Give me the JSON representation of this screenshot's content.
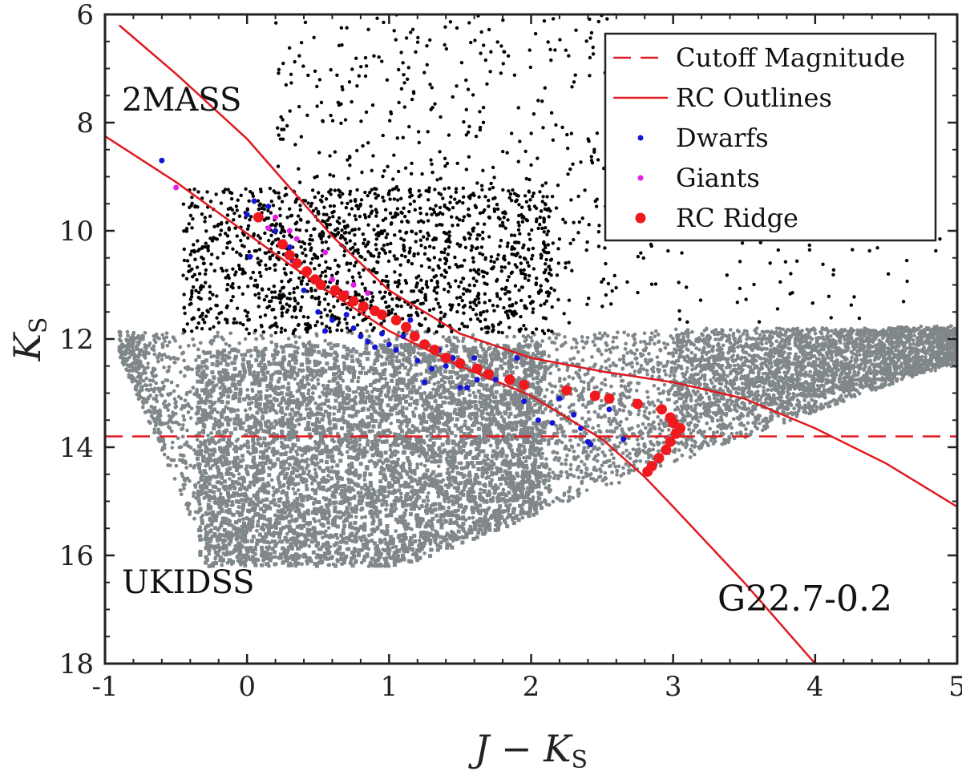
{
  "chart_data": {
    "type": "scatter",
    "title": "",
    "xlabel": "J − K",
    "xlabel_sub": "S",
    "ylabel": "K",
    "ylabel_sub": "S",
    "xlim": [
      -1,
      5
    ],
    "ylim": [
      18,
      6
    ],
    "y_inverted": true,
    "x_ticks": [
      -1,
      0,
      1,
      2,
      3,
      4,
      5
    ],
    "y_ticks": [
      6,
      8,
      10,
      12,
      14,
      16,
      18
    ],
    "x_tick_labels": [
      "-1",
      "0",
      "1",
      "2",
      "3",
      "4",
      "5"
    ],
    "y_tick_labels": [
      "6",
      "8",
      "10",
      "12",
      "14",
      "16",
      "18"
    ],
    "annotations": {
      "top_left": "2MASS",
      "bottom_left": "UKIDSS",
      "bottom_right": "G22.7-0.2"
    },
    "cutoff_magnitude": 13.8,
    "rc_upper_outline": [
      [
        -0.9,
        6.2
      ],
      [
        -0.5,
        7.1
      ],
      [
        0.0,
        8.3
      ],
      [
        0.3,
        9.2
      ],
      [
        0.6,
        10.1
      ],
      [
        1.0,
        11.1
      ],
      [
        1.5,
        11.9
      ],
      [
        2.0,
        12.35
      ],
      [
        2.5,
        12.6
      ],
      [
        3.0,
        12.8
      ],
      [
        3.5,
        13.1
      ],
      [
        4.0,
        13.65
      ],
      [
        4.5,
        14.3
      ],
      [
        5.0,
        15.1
      ]
    ],
    "rc_lower_outline": [
      [
        -1.0,
        8.25
      ],
      [
        -0.5,
        9.1
      ],
      [
        0.0,
        10.05
      ],
      [
        0.5,
        11.0
      ],
      [
        1.0,
        11.85
      ],
      [
        1.5,
        12.5
      ],
      [
        2.0,
        13.05
      ],
      [
        2.5,
        13.85
      ],
      [
        2.8,
        14.55
      ],
      [
        3.0,
        15.1
      ],
      [
        3.5,
        16.5
      ],
      [
        4.0,
        18.0
      ]
    ],
    "series": [
      {
        "name": "Dwarfs",
        "marker": "dot",
        "color": "#1515d8",
        "points": [
          [
            -0.6,
            8.7
          ],
          [
            0.05,
            9.45
          ],
          [
            0.0,
            9.7
          ],
          [
            0.02,
            10.48
          ],
          [
            0.15,
            9.55
          ],
          [
            0.2,
            10.0
          ],
          [
            0.3,
            10.3
          ],
          [
            0.32,
            10.55
          ],
          [
            0.28,
            10.45
          ],
          [
            0.4,
            11.1
          ],
          [
            0.5,
            11.5
          ],
          [
            0.55,
            11.85
          ],
          [
            0.6,
            11.65
          ],
          [
            0.7,
            11.55
          ],
          [
            0.75,
            11.8
          ],
          [
            0.8,
            11.95
          ],
          [
            0.85,
            12.05
          ],
          [
            0.9,
            12.15
          ],
          [
            1.0,
            12.1
          ],
          [
            1.05,
            12.2
          ],
          [
            1.1,
            11.95
          ],
          [
            1.2,
            12.4
          ],
          [
            1.25,
            12.8
          ],
          [
            1.3,
            12.55
          ],
          [
            1.35,
            12.2
          ],
          [
            1.4,
            12.5
          ],
          [
            1.5,
            12.9
          ],
          [
            1.55,
            12.9
          ],
          [
            1.6,
            12.35
          ],
          [
            1.7,
            12.65
          ],
          [
            1.75,
            12.75
          ],
          [
            1.9,
            12.35
          ],
          [
            1.95,
            13.15
          ],
          [
            2.05,
            13.5
          ],
          [
            2.15,
            13.55
          ],
          [
            2.2,
            13.1
          ],
          [
            2.3,
            13.4
          ],
          [
            2.35,
            13.65
          ],
          [
            2.4,
            13.9
          ],
          [
            2.42,
            13.95
          ],
          [
            2.55,
            13.3
          ],
          [
            2.65,
            13.85
          ],
          [
            1.15,
            11.65
          ],
          [
            0.95,
            11.9
          ],
          [
            1.45,
            12.35
          ],
          [
            1.62,
            12.75
          ]
        ]
      },
      {
        "name": "Giants",
        "marker": "dot",
        "color": "#e51ee5",
        "points": [
          [
            -0.5,
            9.2
          ],
          [
            0.15,
            9.95
          ],
          [
            0.2,
            9.75
          ],
          [
            0.3,
            10.0
          ],
          [
            0.35,
            10.15
          ],
          [
            0.55,
            10.4
          ],
          [
            0.6,
            10.9
          ],
          [
            0.7,
            11.15
          ],
          [
            0.75,
            11.0
          ],
          [
            0.85,
            11.15
          ]
        ]
      },
      {
        "name": "RC Ridge",
        "marker": "big-dot",
        "color": "#f0191e",
        "points": [
          [
            0.08,
            9.75
          ],
          [
            0.25,
            10.25
          ],
          [
            0.3,
            10.45
          ],
          [
            0.35,
            10.6
          ],
          [
            0.42,
            10.75
          ],
          [
            0.48,
            10.9
          ],
          [
            0.52,
            11.0
          ],
          [
            0.62,
            11.1
          ],
          [
            0.68,
            11.2
          ],
          [
            0.75,
            11.3
          ],
          [
            0.82,
            11.4
          ],
          [
            0.9,
            11.48
          ],
          [
            0.95,
            11.55
          ],
          [
            1.05,
            11.65
          ],
          [
            1.12,
            11.78
          ],
          [
            1.18,
            11.95
          ],
          [
            1.25,
            12.1
          ],
          [
            1.32,
            12.2
          ],
          [
            1.4,
            12.35
          ],
          [
            1.5,
            12.45
          ],
          [
            1.62,
            12.55
          ],
          [
            1.7,
            12.65
          ],
          [
            1.85,
            12.75
          ],
          [
            1.95,
            12.85
          ],
          [
            2.25,
            12.95
          ],
          [
            2.45,
            13.05
          ],
          [
            2.55,
            13.1
          ],
          [
            2.75,
            13.2
          ],
          [
            2.92,
            13.3
          ],
          [
            2.98,
            13.45
          ],
          [
            3.0,
            13.55
          ],
          [
            3.05,
            13.65
          ],
          [
            3.02,
            13.75
          ],
          [
            2.98,
            13.9
          ],
          [
            2.95,
            14.05
          ],
          [
            2.9,
            14.2
          ],
          [
            2.85,
            14.35
          ],
          [
            2.82,
            14.45
          ]
        ]
      }
    ],
    "background_populations": [
      {
        "name": "2MASS field stars",
        "color": "#000000"
      },
      {
        "name": "UKIDSS field stars",
        "color": "#80878a"
      }
    ],
    "legend": {
      "position": "top-right",
      "entries": [
        {
          "label": "Cutoff Magnitude",
          "style": "dashed-line",
          "color": "#e0191e"
        },
        {
          "label": "RC Outlines",
          "style": "solid-line",
          "color": "#e0191e"
        },
        {
          "label": "Dwarfs",
          "style": "dot",
          "color": "#1515d8"
        },
        {
          "label": "Giants",
          "style": "dot",
          "color": "#e51ee5"
        },
        {
          "label": "RC Ridge",
          "style": "big-dot",
          "color": "#f0191e"
        }
      ]
    }
  }
}
